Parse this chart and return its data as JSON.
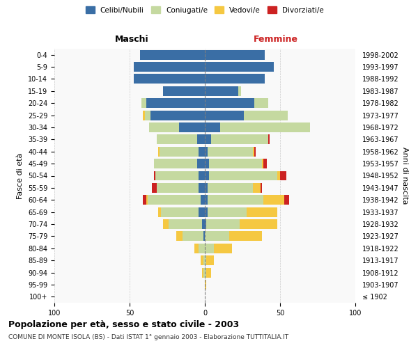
{
  "age_groups": [
    "100+",
    "95-99",
    "90-94",
    "85-89",
    "80-84",
    "75-79",
    "70-74",
    "65-69",
    "60-64",
    "55-59",
    "50-54",
    "45-49",
    "40-44",
    "35-39",
    "30-34",
    "25-29",
    "20-24",
    "15-19",
    "10-14",
    "5-9",
    "0-4"
  ],
  "birth_years": [
    "≤ 1902",
    "1903-1907",
    "1908-1912",
    "1913-1917",
    "1918-1922",
    "1923-1927",
    "1928-1932",
    "1933-1937",
    "1938-1942",
    "1943-1947",
    "1948-1952",
    "1953-1957",
    "1958-1962",
    "1963-1967",
    "1968-1972",
    "1973-1977",
    "1978-1982",
    "1983-1987",
    "1988-1992",
    "1993-1997",
    "1998-2002"
  ],
  "males": {
    "celibe": [
      0,
      0,
      0,
      0,
      0,
      1,
      2,
      4,
      3,
      4,
      4,
      5,
      4,
      5,
      17,
      36,
      39,
      28,
      47,
      47,
      43
    ],
    "coniugato": [
      0,
      0,
      1,
      1,
      4,
      14,
      22,
      25,
      35,
      28,
      29,
      29,
      26,
      27,
      20,
      4,
      3,
      0,
      0,
      0,
      0
    ],
    "vedovo": [
      0,
      0,
      1,
      2,
      3,
      4,
      4,
      2,
      1,
      0,
      0,
      0,
      1,
      0,
      0,
      1,
      0,
      0,
      0,
      0,
      0
    ],
    "divorziato": [
      0,
      0,
      0,
      0,
      0,
      0,
      0,
      0,
      2,
      3,
      1,
      0,
      0,
      0,
      0,
      0,
      0,
      0,
      0,
      0,
      0
    ]
  },
  "females": {
    "nubile": [
      0,
      0,
      0,
      0,
      0,
      0,
      1,
      2,
      2,
      2,
      3,
      3,
      2,
      4,
      10,
      26,
      33,
      22,
      40,
      46,
      40
    ],
    "coniugata": [
      0,
      0,
      1,
      1,
      6,
      16,
      22,
      26,
      37,
      30,
      45,
      35,
      30,
      38,
      60,
      29,
      9,
      2,
      0,
      0,
      0
    ],
    "vedova": [
      0,
      1,
      3,
      5,
      12,
      22,
      25,
      20,
      14,
      5,
      2,
      1,
      1,
      0,
      0,
      0,
      0,
      0,
      0,
      0,
      0
    ],
    "divorziata": [
      0,
      0,
      0,
      0,
      0,
      0,
      0,
      0,
      3,
      1,
      4,
      2,
      1,
      1,
      0,
      0,
      0,
      0,
      0,
      0,
      0
    ]
  },
  "colors": {
    "celibe": "#3a6ea5",
    "coniugato": "#c5d9a0",
    "vedovo": "#f5c842",
    "divorziato": "#cc2222"
  },
  "xlim": [
    -100,
    100
  ],
  "xticks": [
    -100,
    -50,
    0,
    50,
    100
  ],
  "title": "Popolazione per età, sesso e stato civile - 2003",
  "subtitle": "COMUNE DI MONTE ISOLA (BS) - Dati ISTAT 1° gennaio 2003 - Elaborazione TUTTITALIA.IT",
  "ylabel_left": "Fasce di età",
  "ylabel_right": "Anni di nascita",
  "header_left": "Maschi",
  "header_right": "Femmine",
  "bg_color": "#f9f9f9",
  "grid_color": "#cccccc"
}
